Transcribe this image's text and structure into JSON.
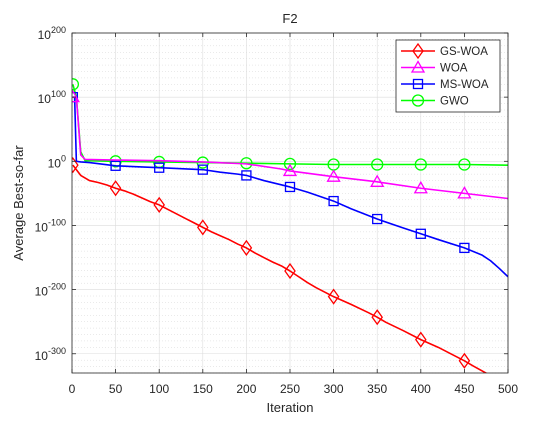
{
  "chart_data": {
    "type": "line",
    "title": "F2",
    "xlabel": "Iteration",
    "ylabel": "Average Best-so-far",
    "xlim": [
      0,
      500
    ],
    "yscale": "log",
    "ylim_exponent": [
      -330,
      200
    ],
    "x_ticks": [
      "0",
      "50",
      "100",
      "150",
      "200",
      "250",
      "300",
      "350",
      "400",
      "450",
      "500"
    ],
    "y_ticks": [
      {
        "base": "10",
        "exp": "200",
        "value": 200
      },
      {
        "base": "10",
        "exp": "100",
        "value": 100
      },
      {
        "base": "10",
        "exp": "0",
        "value": 0
      },
      {
        "base": "10",
        "exp": "-100",
        "value": -100
      },
      {
        "base": "10",
        "exp": "-200",
        "value": -200
      },
      {
        "base": "10",
        "exp": "-300",
        "value": -300
      }
    ],
    "grid": true,
    "legend_position": "top-right",
    "series": [
      {
        "name": "GS-WOA",
        "color": "#ff0000",
        "marker": "diamond",
        "x": [
          1,
          10,
          20,
          30,
          40,
          50,
          60,
          70,
          80,
          90,
          100,
          110,
          120,
          130,
          140,
          150,
          160,
          170,
          180,
          190,
          200,
          210,
          220,
          230,
          240,
          250,
          260,
          270,
          280,
          290,
          300,
          320,
          340,
          350,
          360,
          380,
          400,
          420,
          440,
          450,
          460,
          480,
          500
        ],
        "log10_y": [
          -6,
          -22,
          -30,
          -33,
          -37,
          -42,
          -46,
          -51,
          -57,
          -63,
          -68,
          -75,
          -82,
          -89,
          -96,
          -103,
          -110,
          -116,
          -122,
          -129,
          -135,
          -143,
          -150,
          -157,
          -163,
          -171,
          -180,
          -189,
          -197,
          -204,
          -211,
          -223,
          -236,
          -243,
          -251,
          -264,
          -278,
          -290,
          -304,
          -311,
          -319,
          -334,
          -350
        ],
        "marker_x": [
          1,
          50,
          100,
          150,
          200,
          250,
          300,
          350,
          400,
          450
        ]
      },
      {
        "name": "WOA",
        "color": "#ff00ff",
        "marker": "triangle",
        "x": [
          1,
          5,
          10,
          15,
          50,
          100,
          150,
          200,
          240,
          250,
          300,
          350,
          400,
          450,
          500
        ],
        "log10_y": [
          100,
          100,
          10,
          3,
          2,
          1,
          -1,
          -4,
          -12,
          -15,
          -24,
          -32,
          -42,
          -50,
          -58
        ],
        "marker_x": [
          1,
          250,
          300,
          350,
          400,
          450
        ]
      },
      {
        "name": "MS-WOA",
        "color": "#0000ff",
        "marker": "square",
        "x": [
          1,
          3,
          5,
          10,
          20,
          50,
          100,
          150,
          170,
          190,
          200,
          220,
          250,
          270,
          300,
          320,
          350,
          380,
          400,
          420,
          450,
          470,
          480,
          490,
          500
        ],
        "log10_y": [
          100,
          100,
          0,
          -1,
          -2,
          -7,
          -10,
          -13,
          -17,
          -20,
          -22,
          -30,
          -40,
          -48,
          -62,
          -74,
          -90,
          -104,
          -113,
          -122,
          -135,
          -146,
          -155,
          -167,
          -180
        ],
        "marker_x": [
          1,
          50,
          100,
          150,
          200,
          250,
          300,
          350,
          400,
          450
        ]
      },
      {
        "name": "GWO",
        "color": "#00ff00",
        "marker": "circle",
        "x": [
          1,
          5,
          10,
          15,
          50,
          100,
          150,
          200,
          250,
          300,
          350,
          400,
          450,
          500
        ],
        "log10_y": [
          120,
          100,
          15,
          1,
          0,
          -1,
          -2,
          -3,
          -4,
          -5,
          -5,
          -5,
          -5,
          -6
        ],
        "marker_x": [
          1,
          50,
          100,
          150,
          200,
          250,
          300,
          350,
          400,
          450
        ]
      }
    ]
  }
}
